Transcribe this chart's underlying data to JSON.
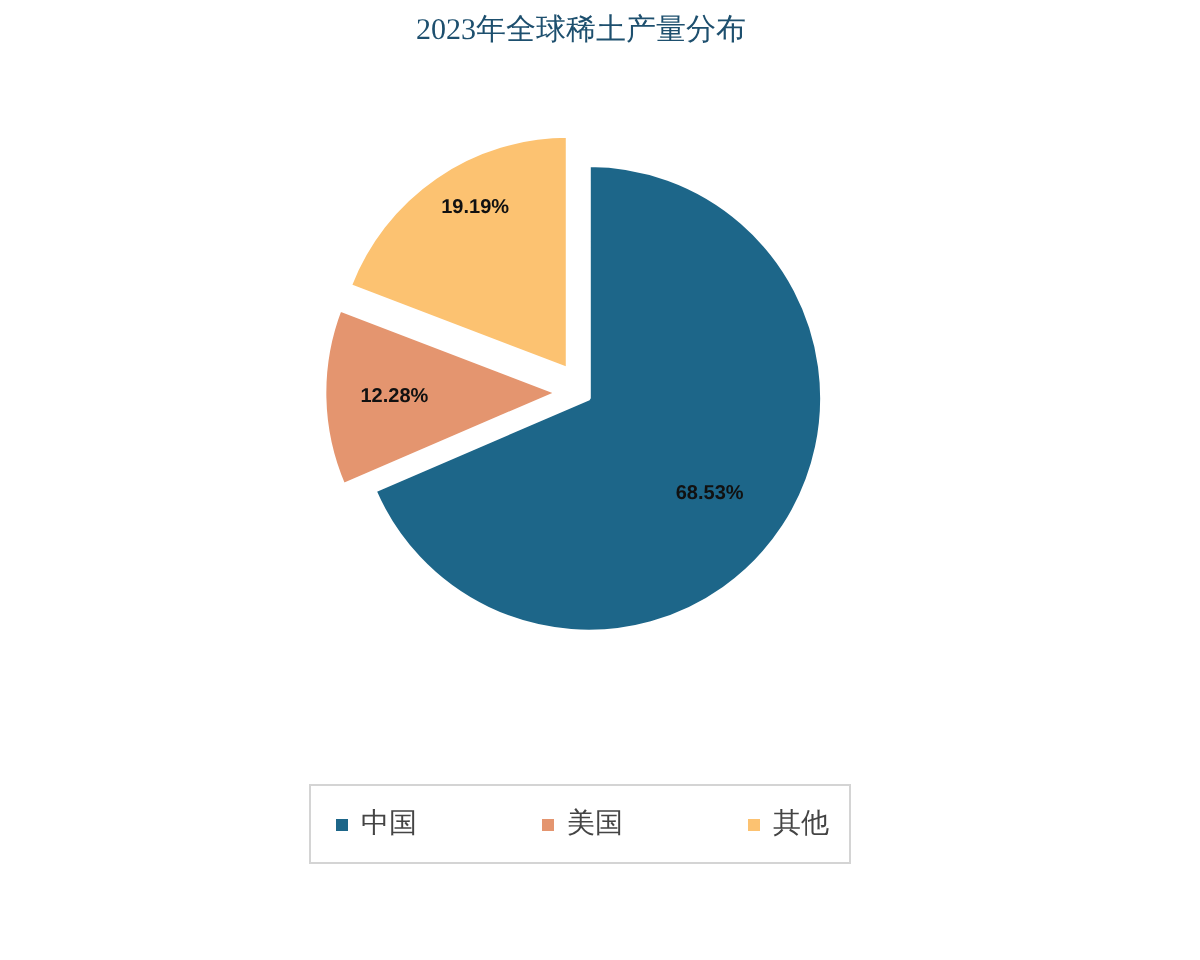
{
  "chart_data": {
    "type": "pie",
    "title": "2023年全球稀土产量分布",
    "categories": [
      "中国",
      "美国",
      "其他"
    ],
    "values": [
      68.53,
      12.28,
      19.19
    ],
    "colors": [
      "#1d6689",
      "#e4956f",
      "#fcc271"
    ],
    "value_labels": [
      "68.53%",
      "12.28%",
      "19.19%"
    ],
    "legend": "bottom"
  }
}
